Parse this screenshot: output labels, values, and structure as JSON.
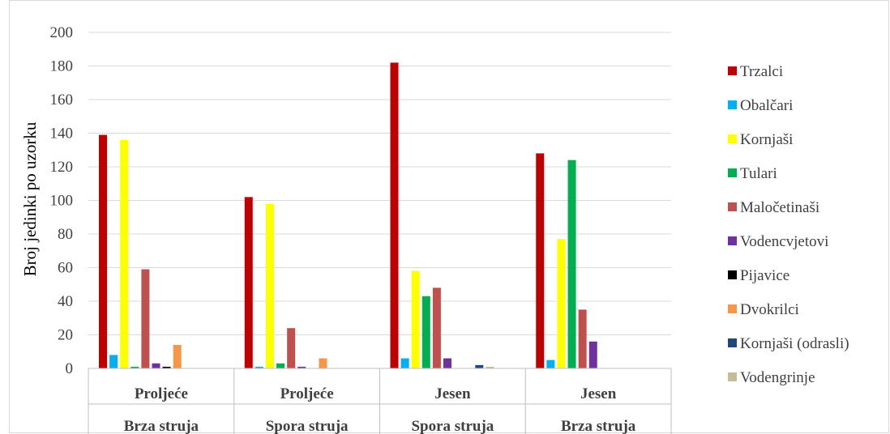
{
  "chart_data": {
    "type": "bar",
    "ylabel": "Broj jedinki po uzorku",
    "xlabel": "",
    "ylim": [
      0,
      200
    ],
    "yticks": [
      0,
      20,
      40,
      60,
      80,
      100,
      120,
      140,
      160,
      180,
      200
    ],
    "grid": true,
    "legend_position": "right",
    "categories": [
      {
        "season": "Proljeće",
        "flow": "Brza struja"
      },
      {
        "season": "Proljeće",
        "flow": "Spora struja"
      },
      {
        "season": "Jesen",
        "flow": "Spora struja"
      },
      {
        "season": "Jesen",
        "flow": "Brza struja"
      }
    ],
    "series": [
      {
        "name": "Trzalci",
        "color": "#c00000",
        "values": [
          139,
          102,
          182,
          128
        ]
      },
      {
        "name": "Obalčari",
        "color": "#00b0f0",
        "values": [
          8,
          1,
          6,
          5
        ]
      },
      {
        "name": "Kornjaši",
        "color": "#ffff00",
        "values": [
          136,
          98,
          58,
          77
        ]
      },
      {
        "name": "Tulari",
        "color": "#00b050",
        "values": [
          1,
          3,
          43,
          124
        ]
      },
      {
        "name": "Maločetinaši",
        "color": "#c0504d",
        "values": [
          59,
          24,
          48,
          35
        ]
      },
      {
        "name": "Vodencvjetovi",
        "color": "#7030a0",
        "values": [
          3,
          1,
          6,
          16
        ]
      },
      {
        "name": "Pijavice",
        "color": "#000000",
        "values": [
          1,
          0,
          0,
          0
        ]
      },
      {
        "name": "Dvokrilci",
        "color": "#f79646",
        "values": [
          14,
          6,
          0,
          0
        ]
      },
      {
        "name": "Kornjaši (odrasli)",
        "color": "#1f497d",
        "values": [
          0,
          0,
          2,
          0
        ]
      },
      {
        "name": "Vodengrinje",
        "color": "#c4bd97",
        "values": [
          0,
          0,
          1,
          0
        ]
      }
    ]
  }
}
